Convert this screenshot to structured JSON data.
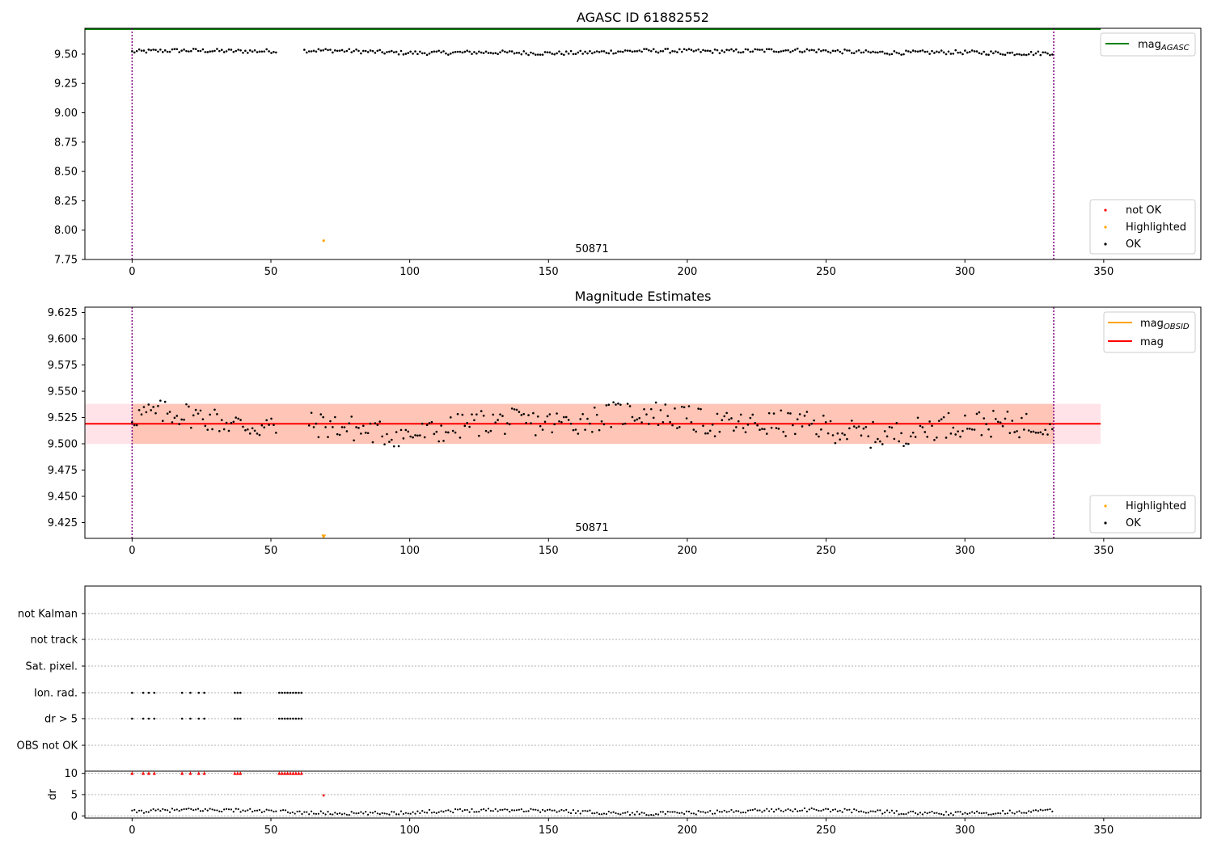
{
  "colors": {
    "ok": "#000000",
    "not_ok": "#ff0000",
    "highlighted": "#ffa500",
    "mag_agasc": "#008000",
    "mag_obsid": "#ffa500",
    "mag": "#ff0000",
    "obs_line": "#800080",
    "band_fill": "#ffc0cb",
    "band_inner": "#ffa07a"
  },
  "chart_data": [
    {
      "type": "scatter",
      "title": "AGASC ID 61882552",
      "xlim": [
        -17,
        385
      ],
      "ylim": [
        7.75,
        9.72
      ],
      "xticks": [
        "0",
        "50",
        "100",
        "150",
        "200",
        "250",
        "300",
        "350"
      ],
      "yticks": [
        "7.75",
        "8.00",
        "8.25",
        "8.50",
        "8.75",
        "9.00",
        "9.25",
        "9.50"
      ],
      "mag_agasc": 9.72,
      "obsid_lines": [
        0,
        332
      ],
      "obsid_label": {
        "text": "50871",
        "x": 166
      },
      "legend_lines": [
        {
          "name": "mag",
          "sub": "AGASC",
          "color": "#008000"
        }
      ],
      "legend_points": [
        {
          "name": "not OK",
          "color": "#ff0000"
        },
        {
          "name": "Highlighted",
          "color": "#ffa500"
        },
        {
          "name": "OK",
          "color": "#000000"
        }
      ],
      "ok_series": {
        "x_start": 0,
        "x_end": 332,
        "gaps": [
          [
            52,
            62
          ]
        ],
        "base": 9.52,
        "amp": 0.025
      },
      "highlighted_points": [
        [
          69,
          7.91
        ]
      ]
    },
    {
      "type": "scatter",
      "title": "Magnitude Estimates",
      "xlim": [
        -17,
        385
      ],
      "ylim": [
        9.41,
        9.63
      ],
      "xticks": [
        "0",
        "50",
        "100",
        "150",
        "200",
        "250",
        "300",
        "350"
      ],
      "yticks": [
        "9.425",
        "9.450",
        "9.475",
        "9.500",
        "9.525",
        "9.550",
        "9.575",
        "9.600",
        "9.625"
      ],
      "mag": 9.519,
      "mag_band": [
        9.5,
        9.538
      ],
      "obsid_lines": [
        0,
        332
      ],
      "obsid_label": {
        "text": "50871",
        "x": 166
      },
      "legend_lines": [
        {
          "name": "mag",
          "sub": "OBSID",
          "color": "#ffa500"
        },
        {
          "name": "mag",
          "sub": "",
          "color": "#ff0000"
        }
      ],
      "legend_points": [
        {
          "name": "Highlighted",
          "color": "#ffa500"
        },
        {
          "name": "OK",
          "color": "#000000"
        }
      ],
      "ok_series": {
        "x_start": 0,
        "x_end": 332,
        "gaps": [
          [
            52,
            63
          ]
        ],
        "base": 9.519,
        "amp": 0.018
      },
      "highlighted_points": [
        [
          69,
          9.412
        ]
      ]
    },
    {
      "type": "scatter",
      "title": "",
      "xlim": [
        -17,
        385
      ],
      "categories": [
        "not Kalman",
        "not track",
        "Sat. pixel.",
        "Ion. rad.",
        "dr > 5",
        "OBS not OK"
      ],
      "flag_points": {
        "Ion. rad.": [
          0,
          4,
          6,
          8,
          18,
          21,
          24,
          26,
          37,
          38,
          39,
          53,
          54,
          55,
          56,
          57,
          58,
          59,
          60,
          61
        ],
        "dr > 5": [
          0,
          4,
          6,
          8,
          18,
          21,
          24,
          26,
          37,
          38,
          39,
          53,
          54,
          55,
          56,
          57,
          58,
          59,
          60,
          61
        ]
      }
    },
    {
      "type": "scatter",
      "title": "",
      "xlim": [
        -17,
        385
      ],
      "ylim": [
        -0.5,
        10.5
      ],
      "ylabel": "dr",
      "xticks": [
        "0",
        "50",
        "100",
        "150",
        "200",
        "250",
        "300",
        "350"
      ],
      "yticks": [
        "0",
        "5",
        "10"
      ],
      "capped_points": [
        0,
        4,
        6,
        8,
        18,
        21,
        24,
        26,
        37,
        38,
        39,
        53,
        54,
        55,
        56,
        57,
        58,
        59,
        60,
        61
      ],
      "capped_value": 10,
      "not_ok_points": [
        [
          69,
          4.8
        ]
      ],
      "ok_series": {
        "x_start": 0,
        "x_end": 332,
        "gaps": [],
        "base": 1.0,
        "amp": 0.7
      }
    }
  ]
}
